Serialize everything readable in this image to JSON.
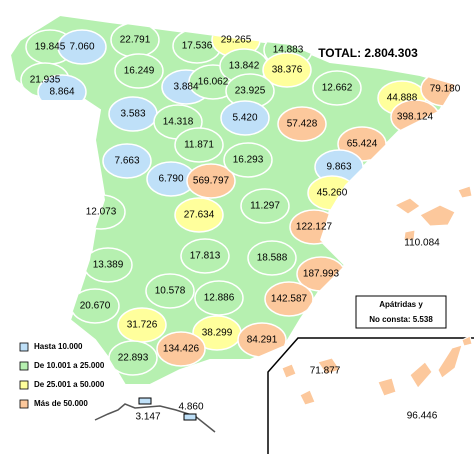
{
  "title": "TOTAL: 2.804.303",
  "legend": [
    {
      "label": "Hasta 10.000",
      "color": "#bfe0f8"
    },
    {
      "label": "De 10.001 a 25.000",
      "color": "#b6f0b0"
    },
    {
      "label": "De 25.001 a 50.000",
      "color": "#ffff9c"
    },
    {
      "label": "Más de 50.000",
      "color": "#fcc89c"
    }
  ],
  "provinces": [
    {
      "label": "19.845",
      "class": 1
    },
    {
      "label": "7.060",
      "class": 0
    },
    {
      "label": "22.791",
      "class": 1
    },
    {
      "label": "17.536",
      "class": 1
    },
    {
      "label": "29.265",
      "class": 2
    },
    {
      "label": "14.883",
      "class": 1
    },
    {
      "label": "21.935",
      "class": 1
    },
    {
      "label": "8.864",
      "class": 0
    },
    {
      "label": "16.249",
      "class": 1
    },
    {
      "label": "3.884",
      "class": 0
    },
    {
      "label": "16.062",
      "class": 1
    },
    {
      "label": "13.842",
      "class": 1
    },
    {
      "label": "38.376",
      "class": 2
    },
    {
      "label": "12.662",
      "class": 1
    },
    {
      "label": "23.925",
      "class": 1
    },
    {
      "label": "44.888",
      "class": 2
    },
    {
      "label": "79.180",
      "class": 3
    },
    {
      "label": "3.583",
      "class": 0
    },
    {
      "label": "14.318",
      "class": 1
    },
    {
      "label": "5.420",
      "class": 0
    },
    {
      "label": "57.428",
      "class": 3
    },
    {
      "label": "398.124",
      "class": 3
    },
    {
      "label": "65.424",
      "class": 3
    },
    {
      "label": "11.871",
      "class": 1
    },
    {
      "label": "7.663",
      "class": 0
    },
    {
      "label": "6.790",
      "class": 0
    },
    {
      "label": "569.797",
      "class": 3
    },
    {
      "label": "16.293",
      "class": 1
    },
    {
      "label": "9.863",
      "class": 0
    },
    {
      "label": "45.260",
      "class": 2
    },
    {
      "label": "12.073",
      "class": 1
    },
    {
      "label": "27.634",
      "class": 2
    },
    {
      "label": "11.297",
      "class": 1
    },
    {
      "label": "122.127",
      "class": 3
    },
    {
      "label": "13.389",
      "class": 1
    },
    {
      "label": "17.813",
      "class": 1
    },
    {
      "label": "18.588",
      "class": 1
    },
    {
      "label": "187.993",
      "class": 3
    },
    {
      "label": "10.578",
      "class": 1
    },
    {
      "label": "20.670",
      "class": 1
    },
    {
      "label": "12.886",
      "class": 1
    },
    {
      "label": "142.587",
      "class": 3
    },
    {
      "label": "31.726",
      "class": 2
    },
    {
      "label": "38.299",
      "class": 2
    },
    {
      "label": "84.291",
      "class": 3
    },
    {
      "label": "134.426",
      "class": 3
    },
    {
      "label": "22.893",
      "class": 1
    }
  ],
  "islands": {
    "baleares": {
      "label": "110.084",
      "class": 3
    },
    "canarias_west": {
      "label": "71.877",
      "class": 3
    },
    "canarias_east": {
      "label": "96.446",
      "class": 3
    }
  },
  "cities": {
    "ceuta": {
      "label": "3.147",
      "class": 0
    },
    "melilla": {
      "label": "4.860",
      "class": 0
    }
  },
  "note": {
    "line1": "Apátridas y",
    "line2": "No consta: 5.538"
  }
}
